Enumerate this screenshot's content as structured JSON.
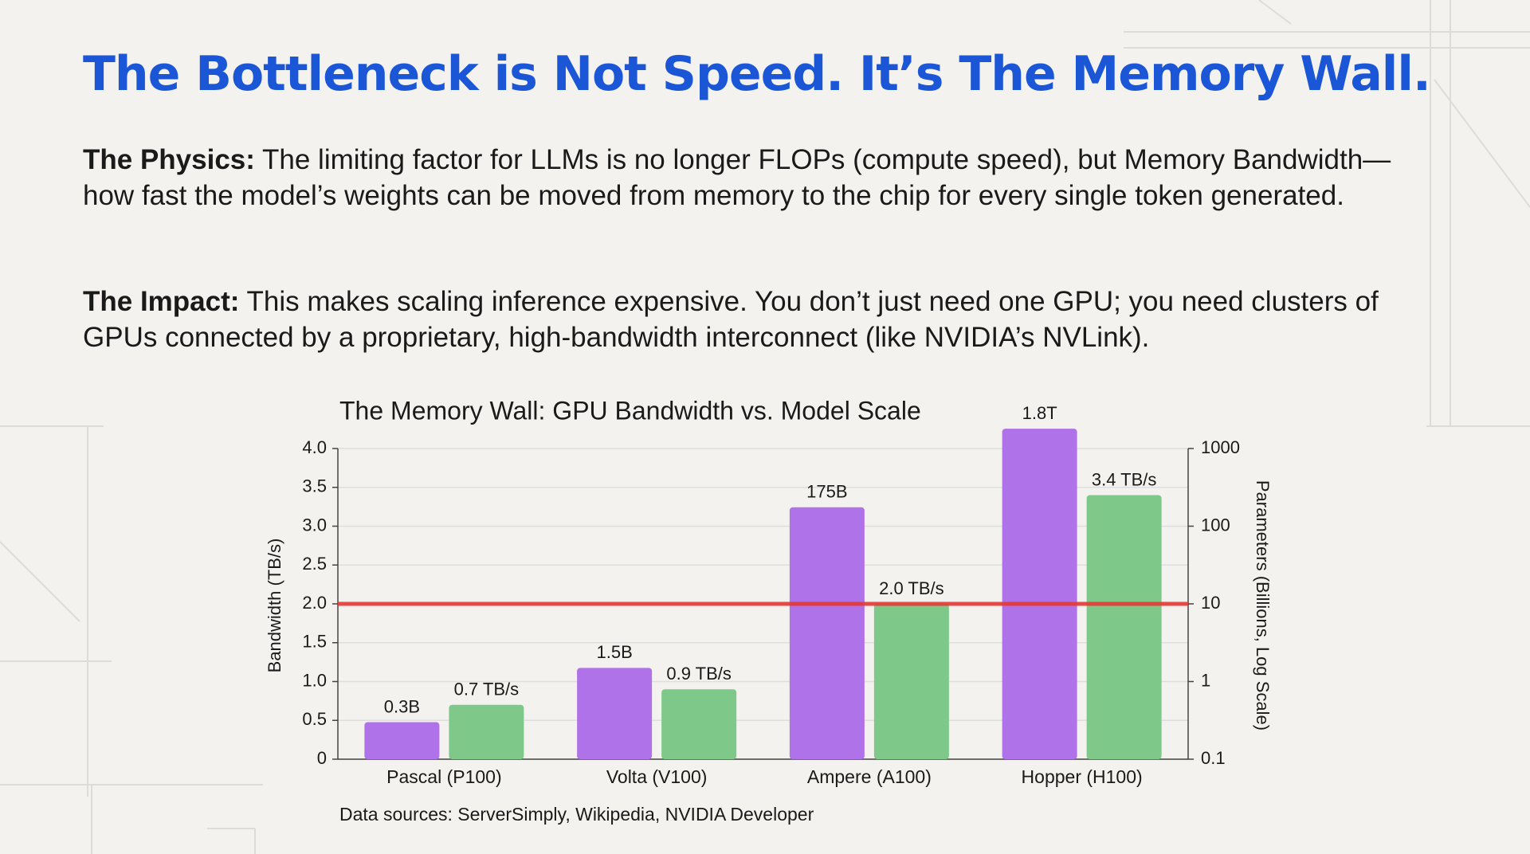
{
  "header": {
    "title": "The Bottleneck is Not Speed. It’s The Memory Wall."
  },
  "paragraphs": [
    {
      "lead": "The Physics:",
      "text": "The limiting factor for LLMs is no longer FLOPs (compute speed), but Memory Bandwidth—how fast the model’s weights can be moved from memory to the chip for every single token generated."
    },
    {
      "lead": "The Impact:",
      "text": "This makes scaling inference expensive. You don’t just need one GPU; you need clusters of GPUs connected by a proprietary, high-bandwidth interconnect (like NVIDIA’s NVLink)."
    }
  ],
  "chart_data": {
    "type": "bar",
    "title": "The Memory Wall: GPU Bandwidth vs. Model Scale",
    "ylabel": "Bandwidth (TB/s)",
    "y2label": "Parameters (Billions, Log Scale)",
    "note": "Data sources: ServerSimply, Wikipedia, NVIDIA Developer",
    "categories": [
      "Pascal (P100)",
      "Volta (V100)",
      "Ampere (A100)",
      "Hopper (H100)"
    ],
    "series": [
      {
        "color": "#b072e8",
        "axis": "y2",
        "values": [
          0.3,
          1.5,
          175,
          1800
        ],
        "value_labels": [
          "0.3B",
          "1.5B",
          "175B",
          "1.8T"
        ]
      },
      {
        "color": "#7ec98a",
        "values": [
          0.7,
          0.9,
          2.0,
          3.4
        ],
        "value_labels": [
          "0.7 TB/s",
          "0.9 TB/s",
          "2.0 TB/s",
          "3.4 TB/s"
        ]
      }
    ],
    "ylim": [
      0,
      4
    ],
    "yticks": [
      0,
      0.5,
      {
        "value": 1,
        "label": "1.0"
      },
      1.5,
      {
        "value": 2,
        "label": "2.0"
      },
      2.5,
      {
        "value": 3,
        "label": "3.0"
      },
      3.5,
      {
        "value": 4,
        "label": "4.0"
      }
    ],
    "y2lim": [
      0.1,
      1000
    ],
    "y2ticks": [
      0.1,
      1,
      10,
      100,
      1000
    ],
    "y2scale": "log",
    "grid": true,
    "reference_line": {
      "value": 2,
      "color": "#e53935"
    }
  }
}
